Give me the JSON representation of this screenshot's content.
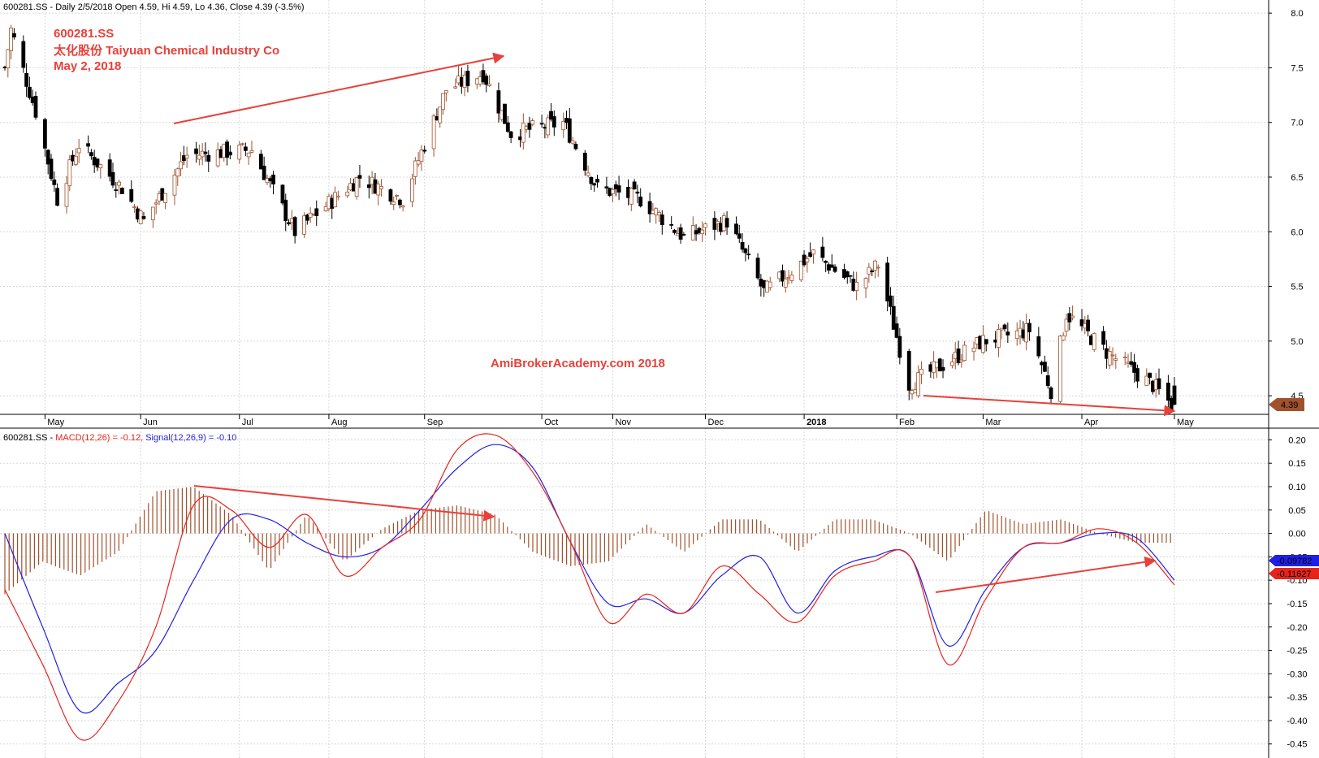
{
  "price_panel": {
    "header": "600281.SS - Daily 2/5/2018 Open 4.59, Hi 4.59, Lo 4.36, Close 4.39 (-3.5%)",
    "annotation": {
      "ticker": "600281.SS",
      "company": "太化股份 Taiyuan Chemical Industry Co",
      "date": "May 2, 2018"
    },
    "watermark": "AmiBrokerAcademy.com  2018",
    "last_price_tag": "4.39",
    "colors": {
      "up": "#a0522d",
      "down": "#000000",
      "annotation": "#e8403a",
      "tag": "#a0522d"
    }
  },
  "macd_panel": {
    "header_prefix": "600281.SS - ",
    "macd_label": "MACD(12,26) = -0.12,",
    "signal_label": "Signal(12,26,9) = -0.10",
    "signal_tag": "-0.09782",
    "macd_tag": "-0.11627",
    "colors": {
      "macd": "#e8231c",
      "signal": "#1f1fe8",
      "histogram": "#a0522d"
    }
  },
  "chart_data": [
    {
      "type": "candlestick",
      "x_ticks": [
        "May",
        "Jun",
        "Jul",
        "Aug",
        "Sep",
        "Oct",
        "Nov",
        "Dec",
        "2018",
        "Feb",
        "Mar",
        "Apr",
        "May"
      ],
      "y_ticks": [
        "8.0",
        "7.5",
        "7.0",
        "6.5",
        "6.0",
        "5.5",
        "5.0",
        "4.5"
      ],
      "ylim": [
        4.33,
        8.12
      ],
      "key_points": [
        {
          "date": "2017-04-18",
          "close": 7.5
        },
        {
          "date": "2017-04-20",
          "close": 7.85
        },
        {
          "date": "2017-04-28",
          "close": 7.1
        },
        {
          "date": "2017-05-05",
          "close": 6.3
        },
        {
          "date": "2017-05-12",
          "close": 6.8
        },
        {
          "date": "2017-05-26",
          "close": 6.4
        },
        {
          "date": "2017-06-02",
          "close": 6.1
        },
        {
          "date": "2017-06-16",
          "close": 6.7
        },
        {
          "date": "2017-07-07",
          "close": 6.75
        },
        {
          "date": "2017-07-21",
          "close": 6.0
        },
        {
          "date": "2017-08-11",
          "close": 6.5
        },
        {
          "date": "2017-08-25",
          "close": 6.3
        },
        {
          "date": "2017-09-08",
          "close": 7.3
        },
        {
          "date": "2017-09-20",
          "close": 7.45
        },
        {
          "date": "2017-09-29",
          "close": 6.9
        },
        {
          "date": "2017-10-16",
          "close": 7.0
        },
        {
          "date": "2017-10-27",
          "close": 6.4
        },
        {
          "date": "2017-11-10",
          "close": 6.3
        },
        {
          "date": "2017-11-24",
          "close": 5.95
        },
        {
          "date": "2017-12-08",
          "close": 6.1
        },
        {
          "date": "2017-12-20",
          "close": 5.45
        },
        {
          "date": "2018-01-05",
          "close": 5.8
        },
        {
          "date": "2018-01-19",
          "close": 5.5
        },
        {
          "date": "2018-01-26",
          "close": 5.7
        },
        {
          "date": "2018-02-05",
          "close": 4.6
        },
        {
          "date": "2018-02-14",
          "close": 4.75
        },
        {
          "date": "2018-03-01",
          "close": 5.0
        },
        {
          "date": "2018-03-16",
          "close": 5.1
        },
        {
          "date": "2018-03-23",
          "close": 4.55
        },
        {
          "date": "2018-03-28",
          "close": 5.25
        },
        {
          "date": "2018-04-10",
          "close": 4.9
        },
        {
          "date": "2018-04-25",
          "close": 4.6
        },
        {
          "date": "2018-05-02",
          "close": 4.39
        }
      ]
    },
    {
      "type": "line",
      "y_ticks": [
        "0.20",
        "0.15",
        "0.10",
        "0.05",
        "0.00",
        "-0.05",
        "-0.10",
        "-0.15",
        "-0.20",
        "-0.25",
        "-0.30",
        "-0.35",
        "-0.40",
        "-0.45"
      ],
      "ylim": [
        -0.48,
        0.225
      ],
      "series": [
        {
          "name": "MACD(12,26)",
          "values": [
            -0.12,
            -0.28,
            -0.44,
            -0.36,
            -0.2,
            0.06,
            0.05,
            -0.03,
            0.04,
            -0.09,
            -0.03,
            0.03,
            0.18,
            0.21,
            0.13,
            -0.02,
            -0.19,
            -0.13,
            -0.17,
            -0.07,
            -0.13,
            -0.19,
            -0.09,
            -0.06,
            -0.05,
            -0.28,
            -0.14,
            -0.03,
            -0.02,
            0.01,
            -0.02,
            -0.11
          ]
        },
        {
          "name": "Signal(12,26,9)",
          "values": [
            0.0,
            -0.2,
            -0.38,
            -0.32,
            -0.25,
            -0.1,
            0.03,
            0.03,
            -0.02,
            -0.05,
            -0.03,
            0.05,
            0.14,
            0.19,
            0.14,
            -0.02,
            -0.15,
            -0.14,
            -0.17,
            -0.09,
            -0.05,
            -0.17,
            -0.08,
            -0.05,
            -0.05,
            -0.24,
            -0.12,
            -0.03,
            -0.02,
            0.0,
            -0.01,
            -0.1
          ]
        }
      ],
      "histogram_values": [
        -0.13,
        -0.06,
        -0.09,
        -0.04,
        0.09,
        0.1,
        0.04,
        -0.08,
        0.04,
        -0.06,
        0.01,
        0.05,
        0.06,
        0.04,
        -0.04,
        -0.07,
        -0.06,
        0.02,
        -0.04,
        0.03,
        0.03,
        -0.04,
        0.03,
        0.03,
        0.0,
        -0.06,
        0.05,
        0.02,
        0.03,
        0.0,
        -0.02,
        -0.02
      ]
    }
  ]
}
